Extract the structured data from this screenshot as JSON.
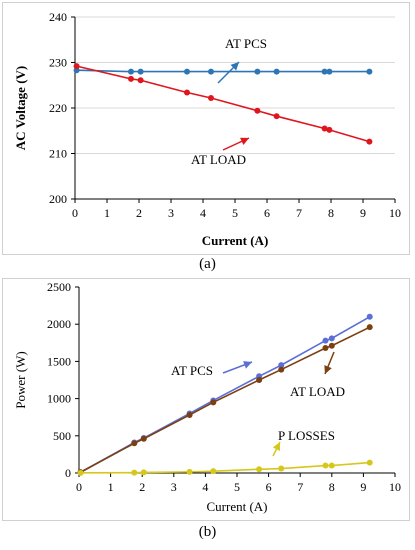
{
  "captions": {
    "a": "(a)",
    "b": "(b)"
  },
  "chart_data": [
    {
      "type": "line",
      "title": "",
      "xlabel": "Current (A)",
      "ylabel": "AC Voltage (V)",
      "xlim": [
        0,
        10
      ],
      "ylim": [
        200,
        240
      ],
      "xticks": [
        0,
        1,
        2,
        3,
        4,
        5,
        6,
        7,
        8,
        9,
        10
      ],
      "yticks": [
        200,
        210,
        220,
        230,
        240
      ],
      "grid": true,
      "series": [
        {
          "name": "AT PCS",
          "color": "#2e75b6",
          "x": [
            0.05,
            1.75,
            2.05,
            3.5,
            4.25,
            5.7,
            6.3,
            7.8,
            7.95,
            9.2
          ],
          "y": [
            228.3,
            228.0,
            228.0,
            228.0,
            228.0,
            228.0,
            228.0,
            228.0,
            228.0,
            228.0
          ]
        },
        {
          "name": "AT LOAD",
          "color": "#e0161e",
          "x": [
            0.05,
            1.75,
            2.05,
            3.5,
            4.25,
            5.7,
            6.3,
            7.8,
            7.95,
            9.2
          ],
          "y": [
            229.2,
            226.4,
            226.1,
            223.4,
            222.2,
            219.4,
            218.2,
            215.5,
            215.2,
            212.6
          ]
        }
      ],
      "annotations": [
        {
          "text": "AT PCS",
          "series": 0
        },
        {
          "text": "AT LOAD",
          "series": 1
        }
      ]
    },
    {
      "type": "line",
      "title": "",
      "xlabel": "Current (A)",
      "ylabel": "Power (W)",
      "xlim": [
        0,
        10
      ],
      "ylim": [
        0,
        2500
      ],
      "xticks": [
        0,
        1,
        2,
        3,
        4,
        5,
        6,
        7,
        8,
        9,
        10
      ],
      "yticks": [
        0,
        500,
        1000,
        1500,
        2000,
        2500
      ],
      "grid": false,
      "series": [
        {
          "name": "AT PCS",
          "color": "#5b6fd6",
          "x": [
            0.05,
            1.75,
            2.05,
            3.5,
            4.25,
            5.7,
            6.4,
            7.8,
            8.0,
            9.2
          ],
          "y": [
            10,
            410,
            470,
            800,
            975,
            1300,
            1450,
            1780,
            1810,
            2100
          ]
        },
        {
          "name": "AT LOAD",
          "color": "#7b3f10",
          "x": [
            0.05,
            1.75,
            2.05,
            3.5,
            4.25,
            5.7,
            6.4,
            7.8,
            8.0,
            9.2
          ],
          "y": [
            10,
            400,
            460,
            780,
            950,
            1250,
            1390,
            1680,
            1710,
            1960
          ]
        },
        {
          "name": "P LOSSES",
          "color": "#d6c81a",
          "x": [
            0.05,
            1.75,
            2.05,
            3.5,
            4.25,
            5.7,
            6.4,
            7.8,
            8.0,
            9.2
          ],
          "y": [
            2,
            5,
            8,
            15,
            25,
            50,
            60,
            100,
            100,
            140
          ]
        }
      ],
      "annotations": [
        {
          "text": "AT PCS",
          "series": 0
        },
        {
          "text": "AT LOAD",
          "series": 1
        },
        {
          "text": "P LOSSES",
          "series": 2
        }
      ]
    }
  ]
}
